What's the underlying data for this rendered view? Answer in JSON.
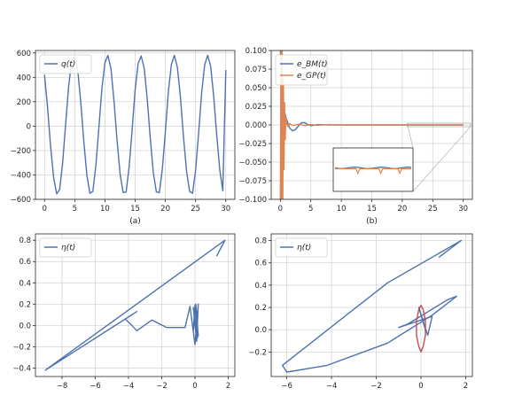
{
  "chart_data": [
    {
      "type": "line",
      "caption": "(a)",
      "xlim": [
        -1.5,
        31.5
      ],
      "ylim": [
        -600,
        620
      ],
      "xticks": [
        "0",
        "5",
        "10",
        "15",
        "20",
        "25",
        "30"
      ],
      "yticks": [
        "600",
        "400",
        "200",
        "0",
        "−200",
        "−400",
        "−600"
      ],
      "grid": true,
      "legend_position": "top-left",
      "series": [
        {
          "name": "q(t)",
          "color": "#4c72b0",
          "x": [
            0,
            0.5,
            1,
            1.5,
            2,
            2.5,
            3,
            3.5,
            4,
            4.5,
            5,
            5.5,
            6,
            6.5,
            7,
            7.5,
            8,
            8.5,
            9,
            9.5,
            10,
            10.5,
            11,
            11.5,
            12,
            12.5,
            13,
            13.5,
            14,
            14.5,
            15,
            15.5,
            16,
            16.5,
            17,
            17.5,
            18,
            18.5,
            19,
            19.5,
            20,
            20.5,
            21,
            21.5,
            22,
            22.5,
            23,
            23.5,
            24,
            24.5,
            25,
            25.5,
            26,
            26.5,
            27,
            27.5,
            28,
            28.5,
            29,
            29.5,
            30
          ],
          "y": [
            420,
            160,
            -160,
            -420,
            -555,
            -520,
            -300,
            20,
            330,
            530,
            575,
            460,
            200,
            -120,
            -400,
            -550,
            -535,
            -320,
            -10,
            310,
            520,
            580,
            470,
            210,
            -110,
            -390,
            -545,
            -540,
            -335,
            -30,
            300,
            515,
            575,
            475,
            225,
            -95,
            -380,
            -540,
            -545,
            -350,
            -45,
            285,
            505,
            580,
            480,
            235,
            -85,
            -370,
            -535,
            -550,
            -360,
            -60,
            270,
            500,
            580,
            490,
            245,
            -70,
            -360,
            -530,
            460
          ]
        }
      ]
    },
    {
      "type": "line",
      "caption": "(b)",
      "xlim": [
        -1.5,
        31.5
      ],
      "ylim": [
        -0.1,
        0.1
      ],
      "xticks": [
        "0",
        "5",
        "10",
        "15",
        "20",
        "25",
        "30"
      ],
      "yticks": [
        "0.100",
        "0.075",
        "0.050",
        "0.025",
        "0.000",
        "−0.025",
        "−0.050",
        "−0.075",
        "−0.100"
      ],
      "grid": true,
      "legend_position": "top-left",
      "inset": {
        "has_zoom_box": true
      },
      "series": [
        {
          "name": "e_BM(t)",
          "color": "#4c72b0",
          "x": [
            0,
            0.3,
            0.6,
            1,
            1.5,
            2,
            2.5,
            3,
            3.5,
            4,
            4.5,
            5,
            5.5,
            6,
            7,
            8,
            9,
            10,
            12,
            15,
            20,
            25,
            30
          ],
          "y": [
            0.1,
            0.05,
            0.02,
            0.008,
            -0.004,
            -0.008,
            -0.006,
            -0.001,
            0.003,
            0.003,
            0.0005,
            -0.001,
            -0.0005,
            0.0003,
            0.0002,
            0,
            0,
            0,
            0,
            0,
            0,
            0,
            0
          ]
        },
        {
          "name": "e_GP(t)",
          "color": "#dd8452",
          "x": [
            0,
            0.1,
            0.2,
            0.3,
            0.4,
            0.5,
            0.6,
            0.7,
            0.8,
            0.9,
            1,
            1.2,
            1.5,
            2,
            3,
            4,
            5,
            6,
            8,
            10,
            15,
            20,
            25,
            30
          ],
          "y": [
            -0.1,
            0.1,
            -0.1,
            0.1,
            -0.1,
            0.06,
            -0.06,
            0.03,
            -0.02,
            0.01,
            0.004,
            -0.002,
            0.002,
            -0.001,
            0.001,
            -0.001,
            0.0005,
            -0.0005,
            0.0005,
            0,
            0,
            0,
            0,
            0
          ]
        }
      ]
    },
    {
      "type": "line",
      "caption": "",
      "xlim": [
        -9.6,
        2.4
      ],
      "ylim": [
        -0.48,
        0.86
      ],
      "xticks": [
        "−8",
        "−6",
        "−4",
        "−2",
        "0",
        "2"
      ],
      "yticks": [
        "0.8",
        "0.6",
        "0.4",
        "0.2",
        "0.0",
        "−0.2",
        "−0.4"
      ],
      "grid": true,
      "legend_position": "top-left",
      "series": [
        {
          "name": "η(t)",
          "color": "#4c72b0",
          "x": [
            1.3,
            1.8,
            -9.0,
            -3.5,
            -4.2,
            -3.8,
            -3.5,
            -2.6,
            -1.7,
            -0.6,
            -0.3,
            0,
            0.2,
            0.1,
            -0.1,
            0,
            0.15,
            0.0,
            -0.1,
            0.05,
            0.2,
            0.1
          ],
          "y": [
            0.65,
            0.8,
            -0.42,
            0.13,
            0.06,
            0.0,
            -0.05,
            0.05,
            -0.02,
            -0.02,
            0.18,
            -0.18,
            0.2,
            -0.15,
            0.17,
            0.05,
            -0.12,
            0.19,
            -0.05,
            0.2,
            -0.1,
            0.0
          ]
        }
      ]
    },
    {
      "type": "line",
      "caption": "",
      "xlim": [
        -6.7,
        2.3
      ],
      "ylim": [
        -0.42,
        0.86
      ],
      "xticks": [
        "−6",
        "−4",
        "−2",
        "0",
        "2"
      ],
      "yticks": [
        "0.8",
        "0.6",
        "0.4",
        "0.2",
        "0.0",
        "−0.2"
      ],
      "grid": true,
      "legend_position": "top-left",
      "series": [
        {
          "name": "η(t)",
          "color": "#4c72b0",
          "x": [
            0.8,
            1.8,
            -1.5,
            -6.2,
            -6.0,
            -4.2,
            -1.5,
            0.5,
            1.6,
            1.2,
            -0.6,
            -1.0,
            0.5,
            0.3,
            -0.1,
            0.2
          ],
          "y": [
            0.65,
            0.8,
            0.42,
            -0.32,
            -0.38,
            -0.32,
            -0.12,
            0.13,
            0.3,
            0.27,
            0.05,
            0.02,
            0.12,
            -0.05,
            0.2,
            0.0
          ]
        },
        {
          "name": "",
          "color": "#c44e52",
          "x": [
            0,
            0.1,
            0.2,
            0.2,
            0.1,
            0,
            -0.1,
            -0.2,
            -0.2,
            -0.1,
            0
          ],
          "y": [
            0.22,
            0.18,
            0.08,
            -0.05,
            -0.15,
            -0.2,
            -0.15,
            -0.05,
            0.08,
            0.18,
            0.22
          ]
        }
      ]
    }
  ]
}
